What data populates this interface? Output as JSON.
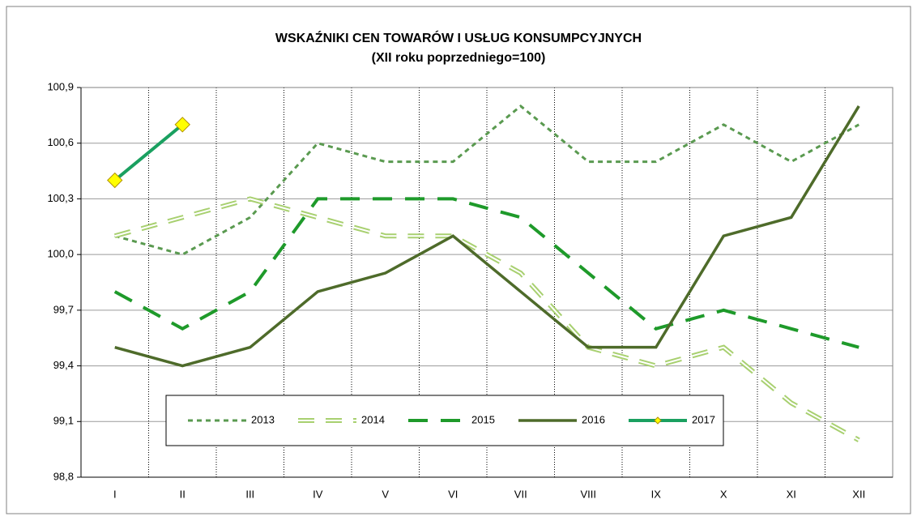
{
  "chart_data": {
    "type": "line",
    "title": "WSKAŹNIKI CEN TOWARÓW I USŁUG KONSUMPCYJNYCH",
    "subtitle": "(XII roku poprzedniego=100)",
    "categories": [
      "I",
      "II",
      "III",
      "IV",
      "V",
      "VI",
      "VII",
      "VIII",
      "IX",
      "X",
      "XI",
      "XII"
    ],
    "series": [
      {
        "name": "2013",
        "color": "#5a9a50",
        "values": [
          100.1,
          100.0,
          100.2,
          100.6,
          100.5,
          100.5,
          100.8,
          100.5,
          100.5,
          100.7,
          100.5,
          100.7
        ]
      },
      {
        "name": "2014",
        "color": "#a8d070",
        "values": [
          100.1,
          100.2,
          100.3,
          100.2,
          100.1,
          100.1,
          99.9,
          99.5,
          99.4,
          99.5,
          99.2,
          99.0
        ]
      },
      {
        "name": "2015",
        "color": "#1e9a2a",
        "values": [
          99.8,
          99.6,
          99.8,
          100.3,
          100.3,
          100.3,
          100.2,
          99.9,
          99.6,
          99.7,
          99.6,
          99.5
        ]
      },
      {
        "name": "2016",
        "color": "#4e6b2a",
        "values": [
          99.5,
          99.4,
          99.5,
          99.8,
          99.9,
          100.1,
          99.8,
          99.5,
          99.5,
          100.1,
          100.2,
          100.8
        ]
      },
      {
        "name": "2017",
        "color": "#1aa060",
        "values": [
          100.4,
          100.7,
          null,
          null,
          null,
          null,
          null,
          null,
          null,
          null,
          null,
          null
        ]
      }
    ],
    "ylim": [
      98.8,
      100.9
    ],
    "yticks": [
      {
        "value": 98.8,
        "label": "98,8"
      },
      {
        "value": 99.1,
        "label": "99,1"
      },
      {
        "value": 99.4,
        "label": "99,4"
      },
      {
        "value": 99.7,
        "label": "99,7"
      },
      {
        "value": 100.0,
        "label": "100,0"
      },
      {
        "value": 100.3,
        "label": "100,3"
      },
      {
        "value": 100.6,
        "label": "100,6"
      },
      {
        "value": 100.9,
        "label": "100,9"
      }
    ],
    "grid": true
  }
}
